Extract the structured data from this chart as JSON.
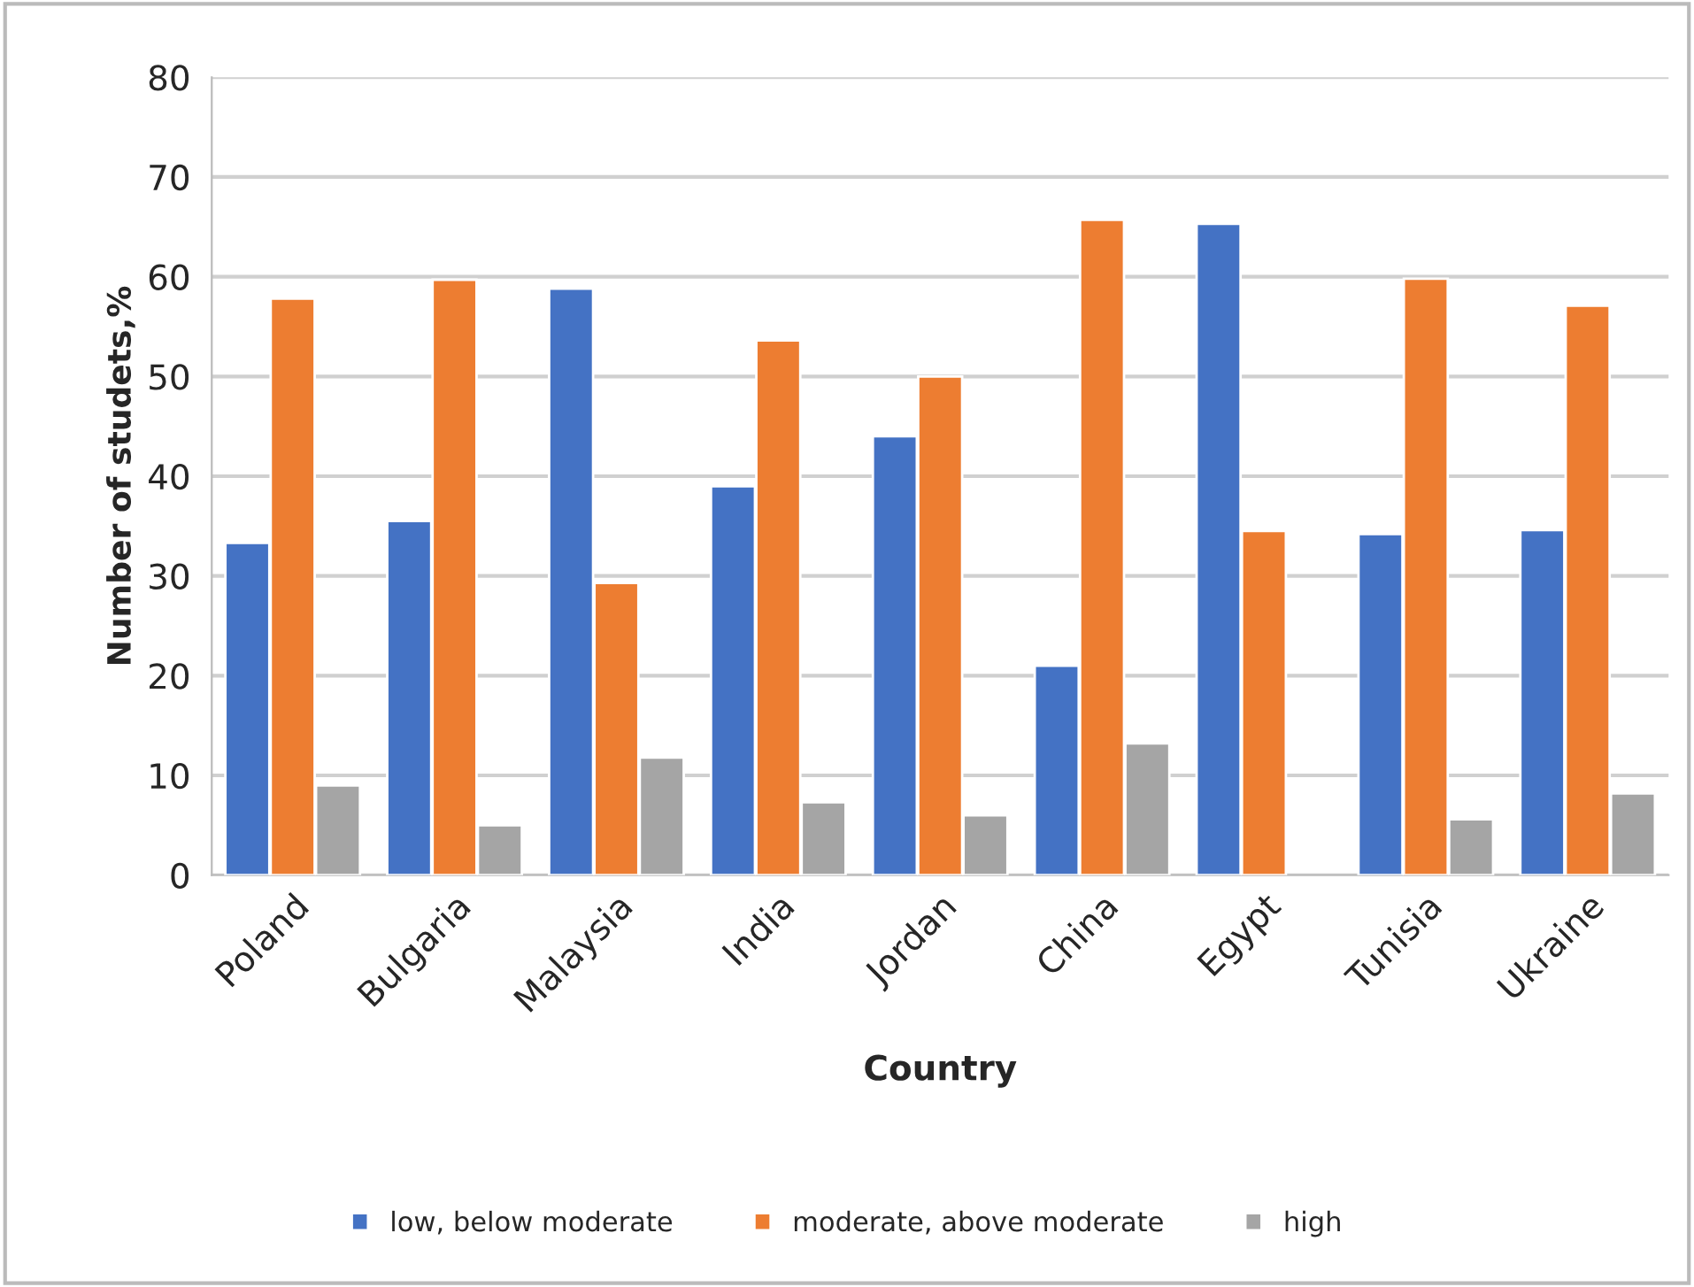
{
  "chart_data": {
    "type": "bar",
    "xlabel": "Country",
    "ylabel": "Number of studets,%",
    "categories": [
      "Poland",
      "Bulgaria",
      "Malaysia",
      "India",
      "Jordan",
      "China",
      "Egypt",
      "Tunisia",
      "Ukraine"
    ],
    "series": [
      {
        "name": "low, below moderate",
        "color": "#4472c4",
        "values": [
          33.3,
          35.5,
          58.8,
          39,
          44,
          21,
          65.3,
          34.2,
          34.6
        ]
      },
      {
        "name": "moderate, above moderate",
        "color": "#ed7d31",
        "values": [
          57.8,
          59.7,
          29.3,
          53.6,
          50,
          65.7,
          34.5,
          59.8,
          57.1
        ]
      },
      {
        "name": "high",
        "color": "#a5a5a5",
        "values": [
          9,
          5,
          11.8,
          7.3,
          6,
          13.2,
          null,
          5.6,
          8.2
        ]
      }
    ],
    "ylim": [
      0,
      80
    ],
    "yticks": [
      0,
      10,
      20,
      30,
      40,
      50,
      60,
      70,
      80
    ],
    "grid": "y",
    "legend": "bottom"
  }
}
